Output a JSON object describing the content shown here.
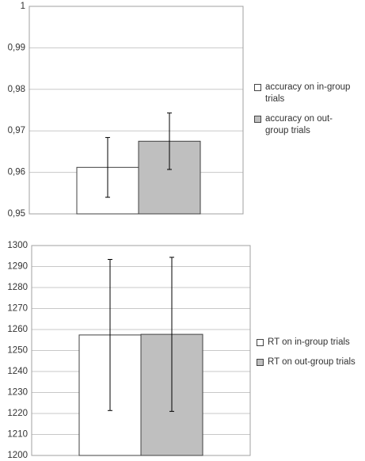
{
  "chart_data": [
    {
      "type": "bar",
      "ylim": [
        0.95,
        1
      ],
      "yticks": [
        {
          "value": 0.95,
          "label": "0,95"
        },
        {
          "value": 0.96,
          "label": "0,96"
        },
        {
          "value": 0.97,
          "label": "0,97"
        },
        {
          "value": 0.98,
          "label": "0,98"
        },
        {
          "value": 0.99,
          "label": "0,99"
        },
        1
      ],
      "grid": true,
      "legend": "right",
      "series": [
        {
          "name": "accuracy on in-group trials",
          "color": "#ffffff",
          "values": [
            0.9612
          ],
          "errors": [
            0.0072
          ]
        },
        {
          "name": "accuracy on out-group trials",
          "color": "#bfbfbf",
          "values": [
            0.9675
          ],
          "errors": [
            0.0068
          ]
        }
      ]
    },
    {
      "type": "bar",
      "ylim": [
        1200,
        1300
      ],
      "yticks": [
        1200,
        1210,
        1220,
        1230,
        1240,
        1250,
        1260,
        1270,
        1280,
        1290,
        1300
      ],
      "grid": true,
      "legend": "right",
      "series": [
        {
          "name": "RT on in-group trials",
          "color": "#ffffff",
          "values": [
            1257.4
          ],
          "errors": [
            36
          ]
        },
        {
          "name": "RT on out-group trials",
          "color": "#bfbfbf",
          "values": [
            1257.7
          ],
          "errors": [
            36.7
          ]
        }
      ]
    }
  ]
}
